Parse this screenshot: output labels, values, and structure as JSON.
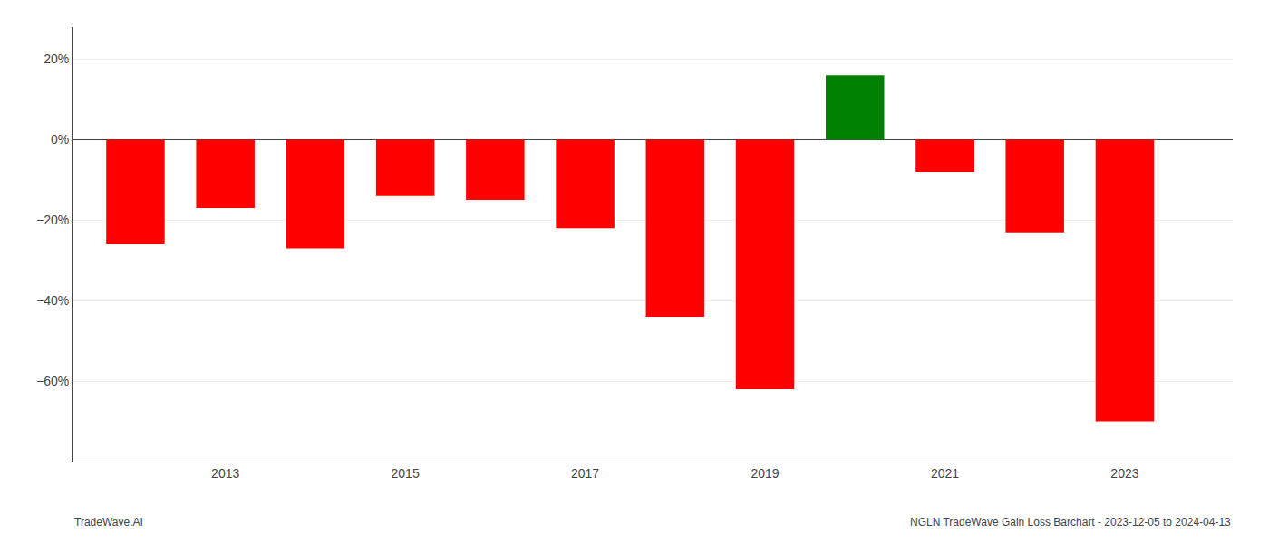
{
  "chart_data": {
    "type": "bar",
    "x": [
      2012,
      2013,
      2014,
      2015,
      2016,
      2017,
      2018,
      2019,
      2020,
      2021,
      2022,
      2023
    ],
    "values": [
      -0.26,
      -0.17,
      -0.27,
      -0.14,
      -0.15,
      -0.22,
      -0.44,
      -0.62,
      0.16,
      -0.08,
      -0.23,
      -0.7
    ],
    "colors": [
      "#ff0000",
      "#ff0000",
      "#ff0000",
      "#ff0000",
      "#ff0000",
      "#ff0000",
      "#ff0000",
      "#ff0000",
      "#008000",
      "#ff0000",
      "#ff0000",
      "#ff0000"
    ],
    "xlim": [
      2011.3,
      2024.2
    ],
    "xticks": [
      2013,
      2015,
      2017,
      2019,
      2021,
      2023
    ],
    "ylim": [
      -0.8,
      0.28
    ],
    "yticks": [
      {
        "value": -0.6,
        "label": "−60%"
      },
      {
        "value": -0.4,
        "label": "−40%"
      },
      {
        "value": -0.2,
        "label": "−20%"
      },
      {
        "value": 0,
        "label": "0%"
      },
      {
        "value": 0.2,
        "label": "20%"
      }
    ],
    "grid": true,
    "annotations": [
      "TradeWave.AI",
      "NGLN TradeWave Gain Loss Barchart - 2023-12-05 to 2024-04-13"
    ]
  }
}
